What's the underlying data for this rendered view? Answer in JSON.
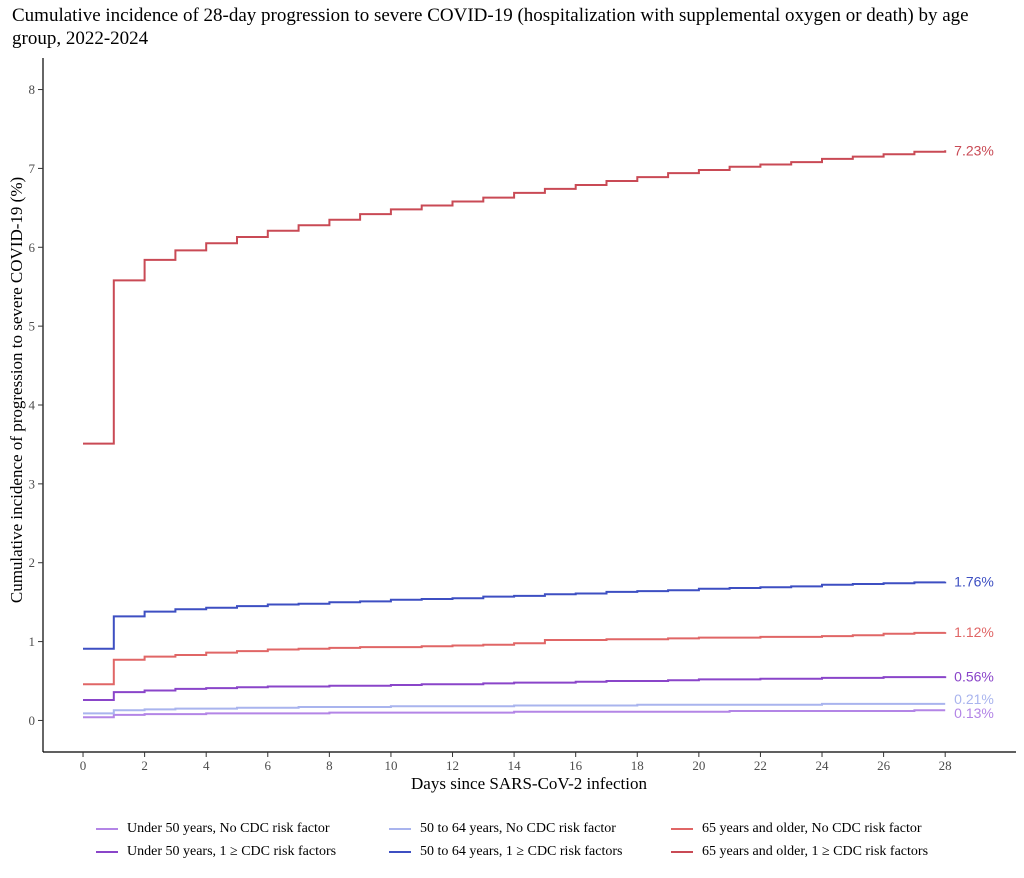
{
  "title": "Cumulative incidence of 28-day progression to severe COVID-19 (hospitalization with supplemental oxygen or death) by age group, 2022-2024",
  "chart_data": {
    "type": "line",
    "step": true,
    "xlabel": "Days since SARS-CoV-2 infection",
    "ylabel": "Cumulative incidence of progression to severe COVID-19 (%)",
    "xlim": [
      -1.3,
      30.3
    ],
    "ylim": [
      -0.4,
      8.4
    ],
    "xticks": [
      0,
      2,
      4,
      6,
      8,
      10,
      12,
      14,
      16,
      18,
      20,
      22,
      24,
      26,
      28
    ],
    "yticks": [
      0,
      1,
      2,
      3,
      4,
      5,
      6,
      7,
      8
    ],
    "grid": false,
    "legend_position": "bottom",
    "series": [
      {
        "name": "Under 50 years, No CDC risk factor",
        "color": "#b385e6",
        "end_label": "0.13%",
        "x": [
          0,
          1,
          2,
          3,
          4,
          5,
          6,
          7,
          8,
          9,
          10,
          11,
          12,
          13,
          14,
          15,
          16,
          17,
          18,
          19,
          20,
          21,
          22,
          23,
          24,
          25,
          26,
          27,
          28
        ],
        "y": [
          0.04,
          0.07,
          0.08,
          0.08,
          0.09,
          0.09,
          0.09,
          0.09,
          0.1,
          0.1,
          0.1,
          0.1,
          0.1,
          0.1,
          0.11,
          0.11,
          0.11,
          0.11,
          0.11,
          0.11,
          0.11,
          0.12,
          0.12,
          0.12,
          0.12,
          0.12,
          0.12,
          0.13,
          0.13
        ]
      },
      {
        "name": "Under 50 years, 1 ≥ CDC risk factors",
        "color": "#8a45c9",
        "end_label": "0.56%",
        "x": [
          0,
          1,
          2,
          3,
          4,
          5,
          6,
          7,
          8,
          9,
          10,
          11,
          12,
          13,
          14,
          15,
          16,
          17,
          18,
          19,
          20,
          21,
          22,
          23,
          24,
          25,
          26,
          27,
          28
        ],
        "y": [
          0.26,
          0.36,
          0.38,
          0.4,
          0.41,
          0.42,
          0.43,
          0.43,
          0.44,
          0.44,
          0.45,
          0.46,
          0.46,
          0.47,
          0.48,
          0.48,
          0.49,
          0.5,
          0.5,
          0.51,
          0.52,
          0.52,
          0.53,
          0.53,
          0.54,
          0.54,
          0.55,
          0.55,
          0.56
        ]
      },
      {
        "name": "50 to 64 years, No CDC risk factor",
        "color": "#a9b4ee",
        "end_label": "0.21%",
        "x": [
          0,
          1,
          2,
          3,
          4,
          5,
          6,
          7,
          8,
          9,
          10,
          11,
          12,
          13,
          14,
          15,
          16,
          17,
          18,
          19,
          20,
          21,
          22,
          23,
          24,
          25,
          26,
          27,
          28
        ],
        "y": [
          0.09,
          0.13,
          0.14,
          0.15,
          0.15,
          0.16,
          0.16,
          0.17,
          0.17,
          0.17,
          0.18,
          0.18,
          0.18,
          0.18,
          0.19,
          0.19,
          0.19,
          0.19,
          0.2,
          0.2,
          0.2,
          0.2,
          0.2,
          0.2,
          0.21,
          0.21,
          0.21,
          0.21,
          0.21
        ]
      },
      {
        "name": "50 to 64 years, 1 ≥ CDC risk factors",
        "color": "#3d4fc2",
        "end_label": "1.76%",
        "x": [
          0,
          1,
          2,
          3,
          4,
          5,
          6,
          7,
          8,
          9,
          10,
          11,
          12,
          13,
          14,
          15,
          16,
          17,
          18,
          19,
          20,
          21,
          22,
          23,
          24,
          25,
          26,
          27,
          28
        ],
        "y": [
          0.91,
          1.32,
          1.38,
          1.41,
          1.43,
          1.45,
          1.47,
          1.48,
          1.5,
          1.51,
          1.53,
          1.54,
          1.55,
          1.57,
          1.58,
          1.6,
          1.61,
          1.63,
          1.64,
          1.65,
          1.67,
          1.68,
          1.69,
          1.7,
          1.72,
          1.73,
          1.74,
          1.75,
          1.76
        ]
      },
      {
        "name": "65 years and older, No CDC risk factor",
        "color": "#e06666",
        "end_label": "1.12%",
        "x": [
          0,
          1,
          2,
          3,
          4,
          5,
          6,
          7,
          8,
          9,
          10,
          11,
          12,
          13,
          14,
          15,
          16,
          17,
          18,
          19,
          20,
          21,
          22,
          23,
          24,
          25,
          26,
          27,
          28
        ],
        "y": [
          0.46,
          0.77,
          0.81,
          0.83,
          0.86,
          0.88,
          0.9,
          0.91,
          0.92,
          0.93,
          0.93,
          0.94,
          0.95,
          0.96,
          0.98,
          1.02,
          1.02,
          1.03,
          1.03,
          1.04,
          1.05,
          1.05,
          1.06,
          1.06,
          1.07,
          1.08,
          1.1,
          1.11,
          1.12
        ]
      },
      {
        "name": "65 years and older, 1 ≥ CDC risk factors",
        "color": "#c94a55",
        "end_label": "7.23%",
        "x": [
          0,
          1,
          2,
          3,
          4,
          5,
          6,
          7,
          8,
          9,
          10,
          11,
          12,
          13,
          14,
          15,
          16,
          17,
          18,
          19,
          20,
          21,
          22,
          23,
          24,
          25,
          26,
          27,
          28
        ],
        "y": [
          3.51,
          5.58,
          5.84,
          5.96,
          6.05,
          6.13,
          6.21,
          6.28,
          6.35,
          6.42,
          6.48,
          6.53,
          6.58,
          6.63,
          6.69,
          6.74,
          6.79,
          6.84,
          6.89,
          6.94,
          6.98,
          7.02,
          7.05,
          7.08,
          7.12,
          7.15,
          7.18,
          7.21,
          7.23
        ]
      }
    ]
  }
}
